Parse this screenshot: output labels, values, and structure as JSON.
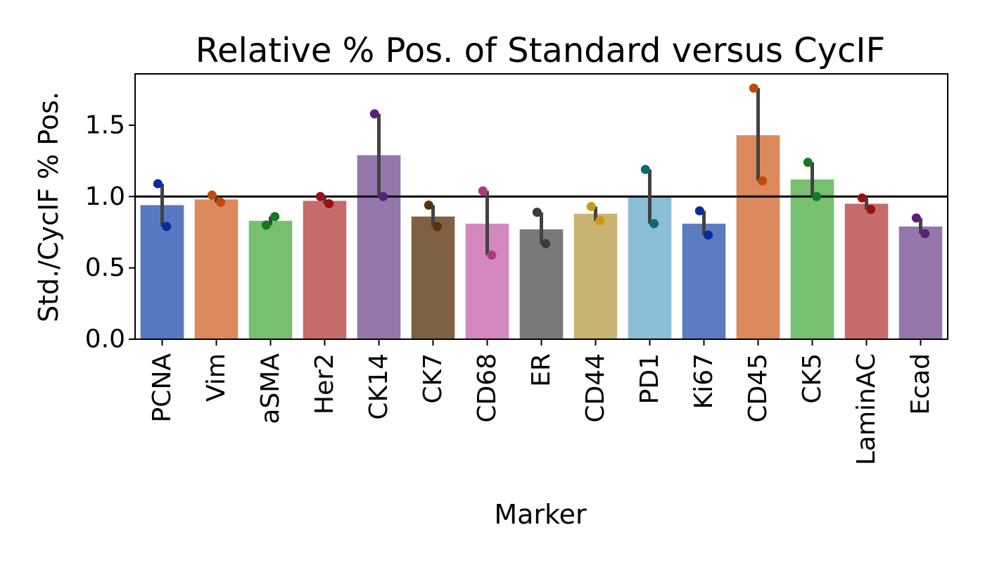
{
  "chart_data": {
    "type": "bar",
    "title": "Relative % Pos. of Standard versus CycIF",
    "xlabel": "Marker",
    "ylabel": "Std./CycIF % Pos.",
    "ylim": [
      0,
      1.86
    ],
    "yticks": [
      0.0,
      0.5,
      1.0,
      1.5
    ],
    "ytick_labels": [
      "0.0",
      "0.5",
      "1.0",
      "1.5"
    ],
    "reference_line": 1.0,
    "grid": false,
    "categories": [
      "PCNA",
      "Vim",
      "aSMA",
      "Her2",
      "CK14",
      "CK7",
      "CD68",
      "ER",
      "CD44",
      "PD1",
      "Ki67",
      "CD45",
      "CK5",
      "LaminAC",
      "Ecad"
    ],
    "values": [
      0.94,
      0.98,
      0.83,
      0.97,
      1.29,
      0.86,
      0.81,
      0.77,
      0.88,
      1.0,
      0.81,
      1.43,
      1.12,
      0.95,
      0.79
    ],
    "error_ranges": [
      [
        0.79,
        1.09
      ],
      [
        0.96,
        1.01
      ],
      [
        0.8,
        0.86
      ],
      [
        0.95,
        1.0
      ],
      [
        1.0,
        1.58
      ],
      [
        0.79,
        0.94
      ],
      [
        0.59,
        1.04
      ],
      [
        0.67,
        0.89
      ],
      [
        0.83,
        0.93
      ],
      [
        0.81,
        1.19
      ],
      [
        0.73,
        0.9
      ],
      [
        1.11,
        1.76
      ],
      [
        1.0,
        1.24
      ],
      [
        0.91,
        0.99
      ],
      [
        0.74,
        0.85
      ]
    ],
    "points": [
      [
        1.09,
        0.79
      ],
      [
        1.01,
        0.96
      ],
      [
        0.8,
        0.86
      ],
      [
        1.0,
        0.95
      ],
      [
        1.58,
        1.0
      ],
      [
        0.94,
        0.79
      ],
      [
        1.04,
        0.59
      ],
      [
        0.89,
        0.67
      ],
      [
        0.93,
        0.83
      ],
      [
        1.19,
        0.81
      ],
      [
        0.9,
        0.73
      ],
      [
        1.76,
        1.11
      ],
      [
        1.24,
        1.0
      ],
      [
        0.99,
        0.91
      ],
      [
        0.85,
        0.74
      ]
    ],
    "bar_colors": [
      "#5778c2",
      "#dc8a5c",
      "#76c070",
      "#c66b6b",
      "#9476ad",
      "#806043",
      "#d388be",
      "#797979",
      "#c9b373",
      "#8bbfd7",
      "#5b7cc0",
      "#dc8a5c",
      "#76c070",
      "#c66b6b",
      "#9476ad"
    ],
    "point_colors": [
      "#0a2b9a",
      "#c14a0a",
      "#137a22",
      "#9b1010",
      "#5b1e7a",
      "#5a3208",
      "#b0367d",
      "#3a3a3a",
      "#c89a14",
      "#0c6878",
      "#0a2b9a",
      "#c14a0a",
      "#137a22",
      "#9b1010",
      "#5b1e7a"
    ],
    "error_color": "#424242"
  }
}
